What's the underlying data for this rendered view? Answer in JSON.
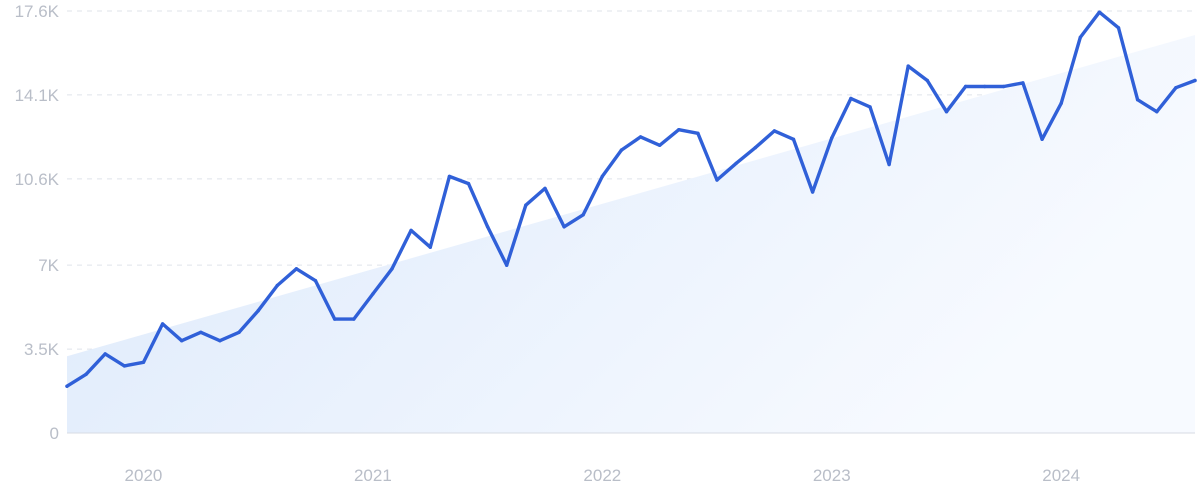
{
  "chart_data": {
    "type": "line",
    "title": "",
    "xlabel": "",
    "ylabel": "",
    "colors": {
      "line": "#3060d8",
      "trend_fill_start": "#dce9fb",
      "trend_fill_end": "#f7faff"
    },
    "y_axis": {
      "range": [
        0,
        17600
      ],
      "ticks": [
        {
          "value": 0,
          "label": "0"
        },
        {
          "value": 3500,
          "label": "3.5K"
        },
        {
          "value": 7000,
          "label": "7K"
        },
        {
          "value": 10600,
          "label": "10.6K"
        },
        {
          "value": 14100,
          "label": "14.1K"
        },
        {
          "value": 17600,
          "label": "17.6K"
        }
      ],
      "grid": true
    },
    "x_axis": {
      "range": [
        "2019-09",
        "2024-08"
      ],
      "ticks": [
        {
          "value": "2020-01",
          "label": "2020"
        },
        {
          "value": "2021-01",
          "label": "2021"
        },
        {
          "value": "2022-01",
          "label": "2022"
        },
        {
          "value": "2023-01",
          "label": "2023"
        },
        {
          "value": "2024-01",
          "label": "2024"
        }
      ]
    },
    "series": [
      {
        "x": [
          "2019-09",
          "2019-10",
          "2019-11",
          "2019-12",
          "2020-01",
          "2020-02",
          "2020-03",
          "2020-04",
          "2020-05",
          "2020-06",
          "2020-07",
          "2020-08",
          "2020-09",
          "2020-10",
          "2020-11",
          "2020-12",
          "2021-01",
          "2021-02",
          "2021-03",
          "2021-04",
          "2021-05",
          "2021-06",
          "2021-07",
          "2021-08",
          "2021-09",
          "2021-10",
          "2021-11",
          "2021-12",
          "2022-01",
          "2022-02",
          "2022-03",
          "2022-04",
          "2022-05",
          "2022-06",
          "2022-07",
          "2022-08",
          "2022-09",
          "2022-10",
          "2022-11",
          "2022-12",
          "2023-01",
          "2023-02",
          "2023-03",
          "2023-04",
          "2023-05",
          "2023-06",
          "2023-07",
          "2023-08",
          "2023-09",
          "2023-10",
          "2023-11",
          "2023-12",
          "2024-01",
          "2024-02",
          "2024-03",
          "2024-04",
          "2024-05",
          "2024-06",
          "2024-07",
          "2024-08"
        ],
        "values": [
          1950,
          2450,
          3300,
          2800,
          2950,
          4550,
          3850,
          4200,
          3850,
          4200,
          5100,
          6150,
          6850,
          6350,
          4750,
          4750,
          5800,
          6850,
          8450,
          7750,
          10700,
          10400,
          8600,
          7000,
          9500,
          10200,
          8600,
          9100,
          10700,
          11800,
          12350,
          12000,
          12650,
          12500,
          10550,
          11250,
          11900,
          12600,
          12250,
          10050,
          12300,
          13950,
          13600,
          11200,
          15300,
          14700,
          13400,
          14450,
          14450,
          14450,
          14600,
          12250,
          13750,
          16500,
          17550,
          16900,
          13900,
          13400,
          14400,
          14700
        ]
      }
    ],
    "trend_band": {
      "start": {
        "x": "2019-09",
        "y": 3200
      },
      "end": {
        "x": "2024-08",
        "y": 16600
      }
    }
  }
}
